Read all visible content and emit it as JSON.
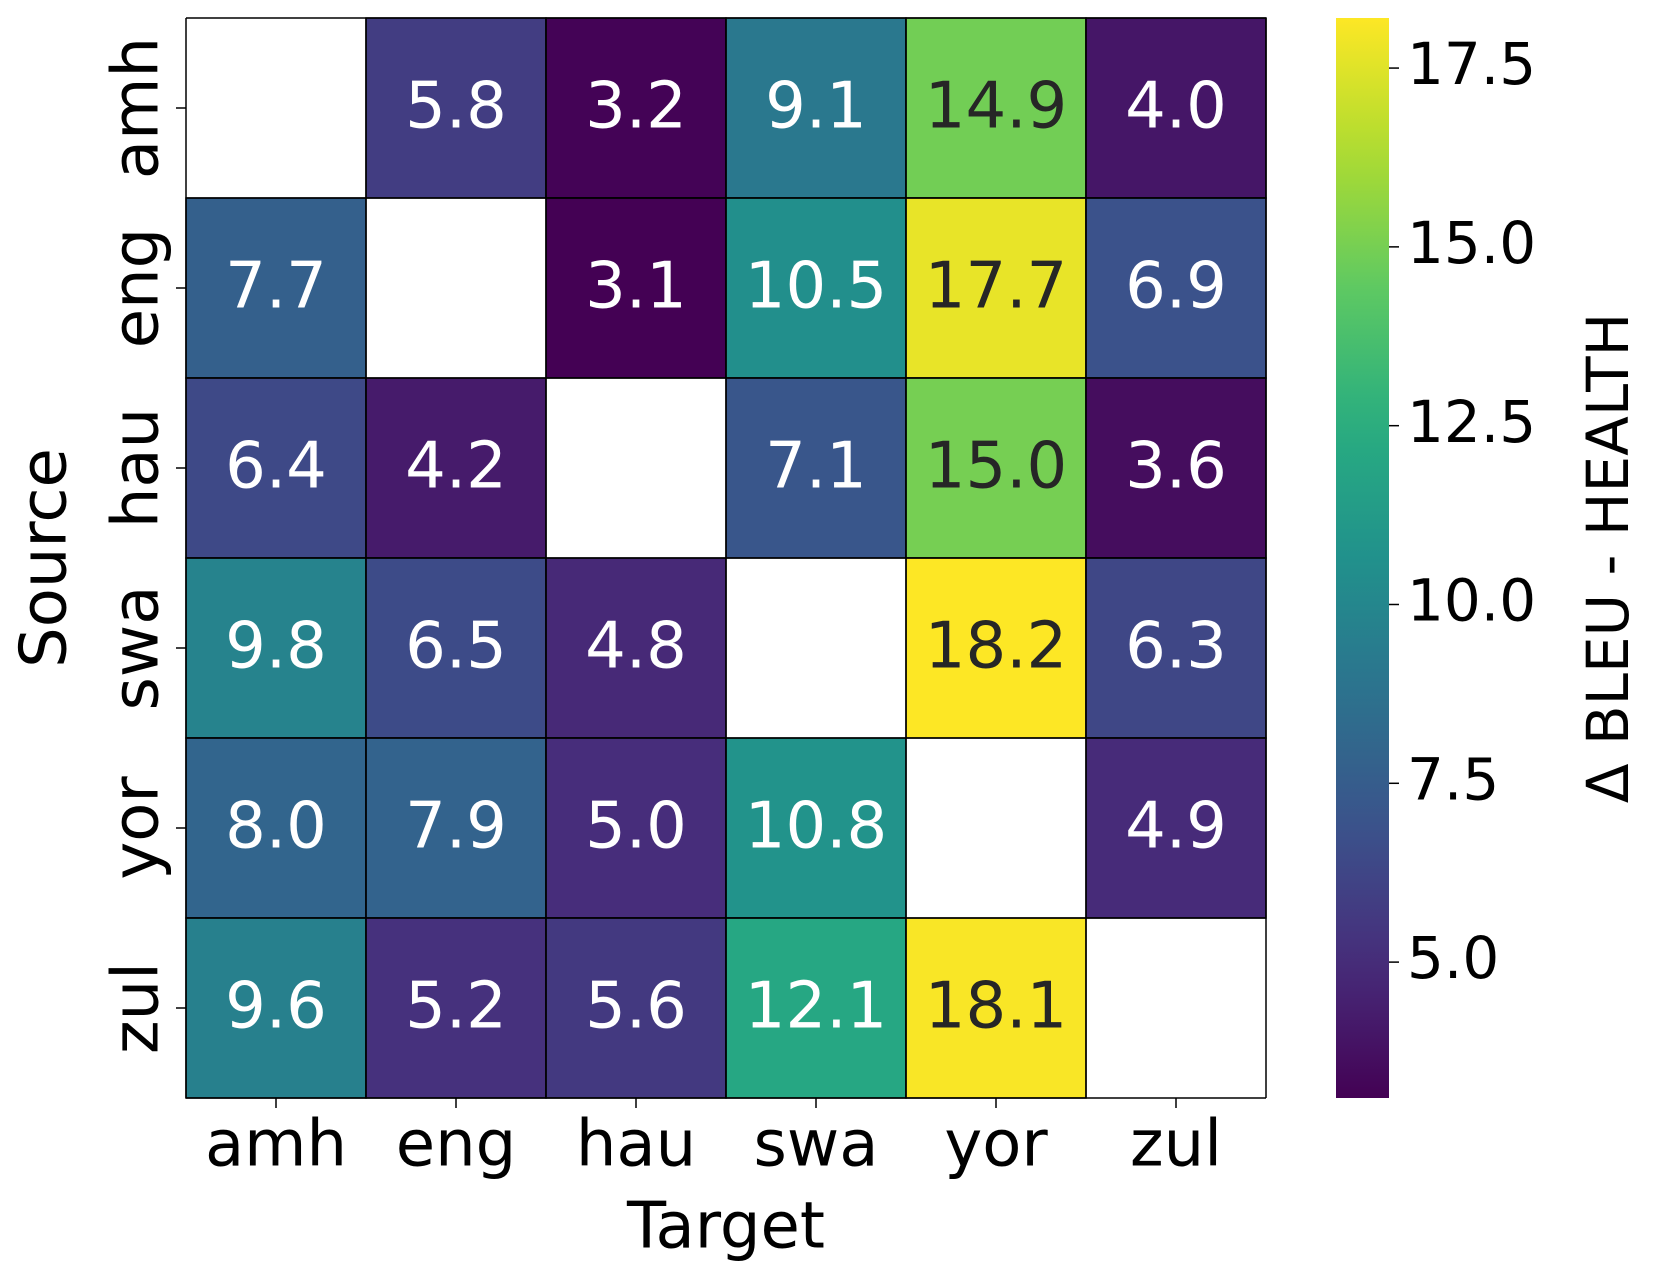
{
  "chart_data": {
    "type": "heatmap",
    "xlabel": "Target",
    "ylabel": "Source",
    "x_categories": [
      "amh",
      "eng",
      "hau",
      "swa",
      "yor",
      "zul"
    ],
    "y_categories": [
      "amh",
      "eng",
      "hau",
      "swa",
      "yor",
      "zul"
    ],
    "values": [
      [
        null,
        5.8,
        3.2,
        9.1,
        14.9,
        4.0
      ],
      [
        7.7,
        null,
        3.1,
        10.5,
        17.7,
        6.9
      ],
      [
        6.4,
        4.2,
        null,
        7.1,
        15.0,
        3.6
      ],
      [
        9.8,
        6.5,
        4.8,
        null,
        18.2,
        6.3
      ],
      [
        8.0,
        7.9,
        5.0,
        10.8,
        null,
        4.9
      ],
      [
        9.6,
        5.2,
        5.6,
        12.1,
        18.1,
        null
      ]
    ],
    "value_labels": [
      [
        null,
        "5.8",
        "3.2",
        "9.1",
        "14.9",
        "4.0"
      ],
      [
        "7.7",
        null,
        "3.1",
        "10.5",
        "17.7",
        "6.9"
      ],
      [
        "6.4",
        "4.2",
        null,
        "7.1",
        "15.0",
        "3.6"
      ],
      [
        "9.8",
        "6.5",
        "4.8",
        null,
        "18.2",
        "6.3"
      ],
      [
        "8.0",
        "7.9",
        "5.0",
        "10.8",
        null,
        "4.9"
      ],
      [
        "9.6",
        "5.2",
        "5.6",
        "12.1",
        "18.1",
        null
      ]
    ],
    "colormap": "viridis",
    "colorbar_label": "Δ BLEU - HEALTH",
    "clim": [
      3.1,
      18.2
    ],
    "cticks": [
      {
        "value": 5,
        "label": "5.0"
      },
      7.5,
      {
        "value": 10,
        "label": "10.0"
      },
      12.5,
      {
        "value": 15,
        "label": "15.0"
      },
      17.5
    ]
  }
}
